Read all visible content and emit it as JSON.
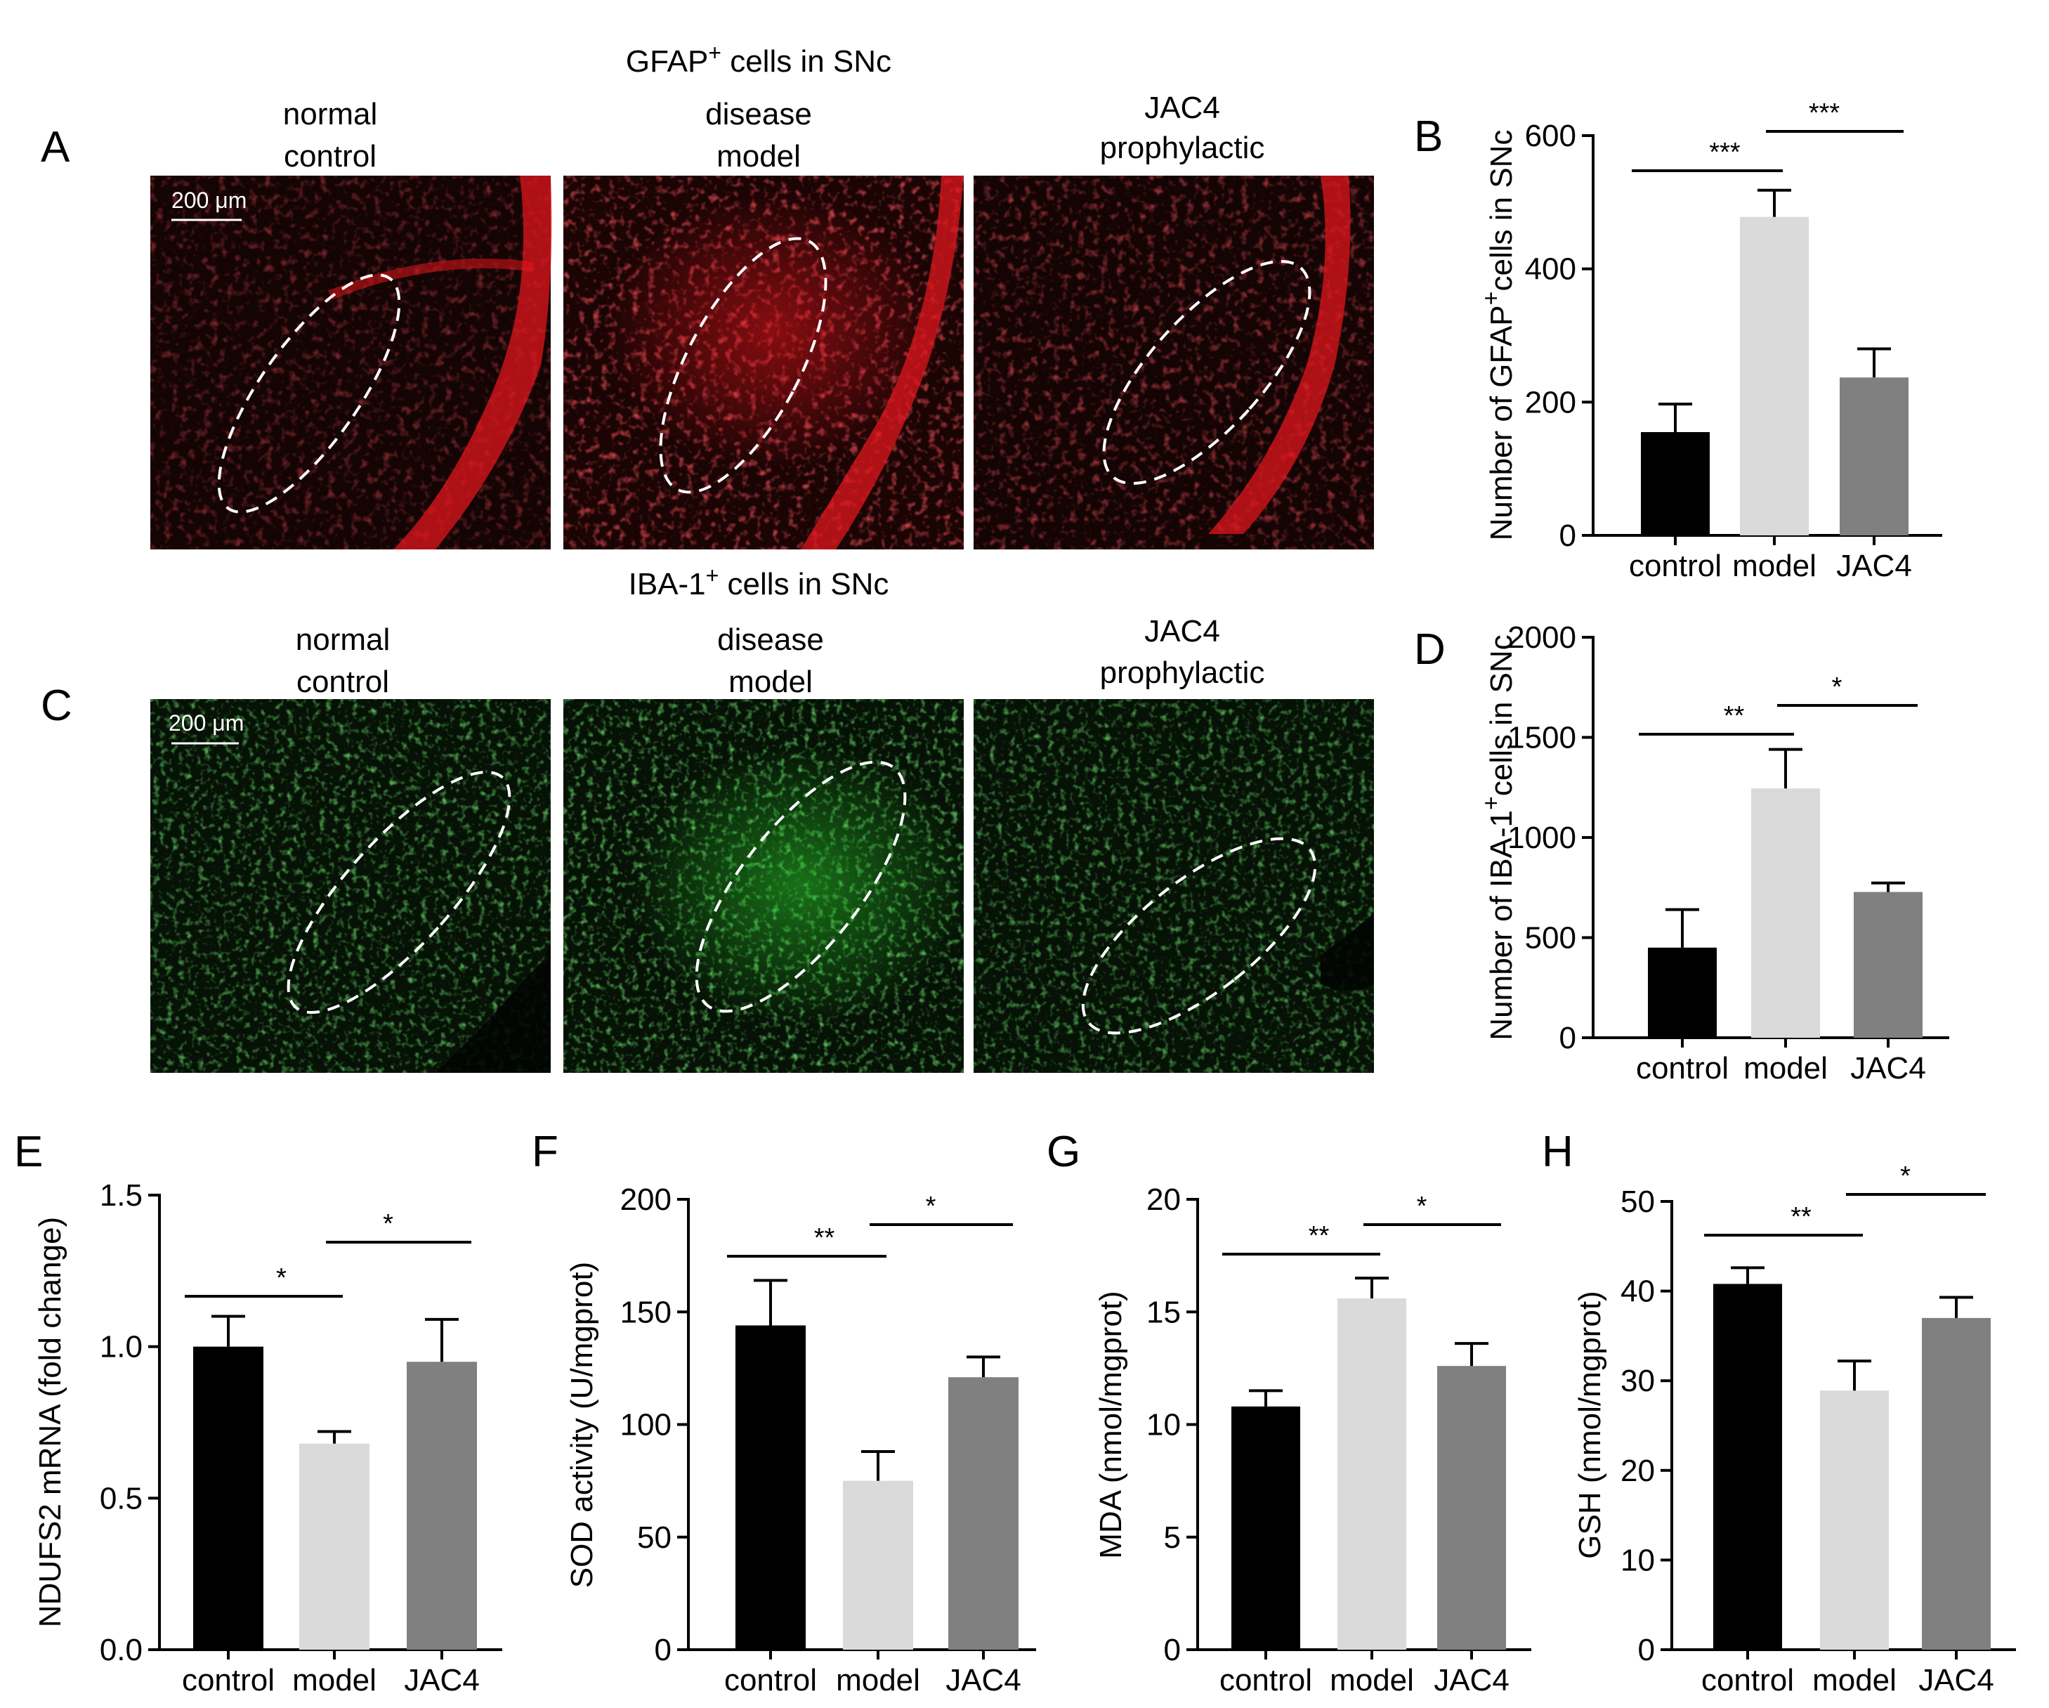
{
  "panels": {
    "A": {
      "letter": "A",
      "title_prefix": "GFAP",
      "title_sup": "+",
      "title_suffix": " cells in SNc",
      "scale_bar": "200 μm",
      "columns": [
        {
          "line1": "normal",
          "line2": "control"
        },
        {
          "line1": "disease",
          "line2": "model"
        },
        {
          "line1": "JAC4",
          "line2": "prophylactic"
        }
      ],
      "image_color": "#e0151c",
      "background_color": "#140404"
    },
    "C": {
      "letter": "C",
      "title_prefix": "IBA-1",
      "title_sup": "+",
      "title_suffix": " cells in SNc",
      "scale_bar": "200 μm",
      "columns": [
        {
          "line1": "normal",
          "line2": "control"
        },
        {
          "line1": "disease",
          "line2": "model"
        },
        {
          "line1": "JAC4",
          "line2": "prophylactic"
        }
      ],
      "image_color": "#2bd02b",
      "background_color": "#061206"
    }
  },
  "bar_colors": [
    "#000000",
    "#d9dad9",
    "#808080"
  ],
  "chart_data": [
    {
      "panel": "B",
      "type": "bar",
      "categories": [
        "control",
        "model",
        "JAC4"
      ],
      "values": [
        155,
        478,
        237
      ],
      "errors": [
        42,
        40,
        43
      ],
      "ylim": [
        0,
        600
      ],
      "yticks": [
        0,
        200,
        400,
        600
      ],
      "ylabel_prefix": "Number of GFAP",
      "ylabel_sup": "+",
      "ylabel_suffix": "cells in SNc",
      "significance": [
        {
          "from": 0,
          "to": 1,
          "label": "***"
        },
        {
          "from": 1,
          "to": 2,
          "label": "***"
        }
      ]
    },
    {
      "panel": "D",
      "type": "bar",
      "categories": [
        "control",
        "model",
        "JAC4"
      ],
      "values": [
        450,
        1245,
        728
      ],
      "errors": [
        190,
        195,
        45
      ],
      "ylim": [
        0,
        2000
      ],
      "yticks": [
        0,
        500,
        1000,
        1500,
        2000
      ],
      "ylabel_prefix": "Number of IBA-1",
      "ylabel_sup": "+",
      "ylabel_suffix": "cells in SNc",
      "significance": [
        {
          "from": 0,
          "to": 1,
          "label": "**"
        },
        {
          "from": 1,
          "to": 2,
          "label": "*"
        }
      ]
    },
    {
      "panel": "E",
      "type": "bar",
      "categories": [
        "control",
        "model",
        "JAC4"
      ],
      "values": [
        1.0,
        0.68,
        0.95
      ],
      "errors": [
        0.1,
        0.04,
        0.14
      ],
      "ylim": [
        0,
        1.5
      ],
      "yticks": [
        0.0,
        0.5,
        1.0,
        1.5
      ],
      "ytick_labels": [
        "0.0",
        "0.5",
        "1.0",
        "1.5"
      ],
      "ylabel": "NDUFS2 mRNA (fold change)",
      "significance": [
        {
          "from": 0,
          "to": 1,
          "label": "*"
        },
        {
          "from": 1,
          "to": 2,
          "label": "*"
        }
      ]
    },
    {
      "panel": "F",
      "type": "bar",
      "categories": [
        "control",
        "model",
        "JAC4"
      ],
      "values": [
        144,
        75,
        121
      ],
      "errors": [
        20,
        13,
        9
      ],
      "ylim": [
        0,
        200
      ],
      "yticks": [
        0,
        50,
        100,
        150,
        200
      ],
      "ylabel": "SOD activity (U/mgprot)",
      "significance": [
        {
          "from": 0,
          "to": 1,
          "label": "**"
        },
        {
          "from": 1,
          "to": 2,
          "label": "*"
        }
      ]
    },
    {
      "panel": "G",
      "type": "bar",
      "categories": [
        "control",
        "model",
        "JAC4"
      ],
      "values": [
        10.8,
        15.6,
        12.6
      ],
      "errors": [
        0.7,
        0.9,
        1.0
      ],
      "ylim": [
        0,
        20
      ],
      "yticks": [
        0,
        5,
        10,
        15,
        20
      ],
      "ylabel": "MDA (nmol/mgprot)",
      "significance": [
        {
          "from": 0,
          "to": 1,
          "label": "**"
        },
        {
          "from": 1,
          "to": 2,
          "label": "*"
        }
      ]
    },
    {
      "panel": "H",
      "type": "bar",
      "categories": [
        "control",
        "model",
        "JAC4"
      ],
      "values": [
        40.8,
        28.9,
        37.0
      ],
      "errors": [
        1.8,
        3.3,
        2.3
      ],
      "ylim": [
        0,
        50
      ],
      "yticks": [
        0,
        10,
        20,
        30,
        40,
        50
      ],
      "ylabel": "GSH (nmol/mgprot)",
      "significance": [
        {
          "from": 0,
          "to": 1,
          "label": "**"
        },
        {
          "from": 1,
          "to": 2,
          "label": "*"
        }
      ]
    }
  ]
}
